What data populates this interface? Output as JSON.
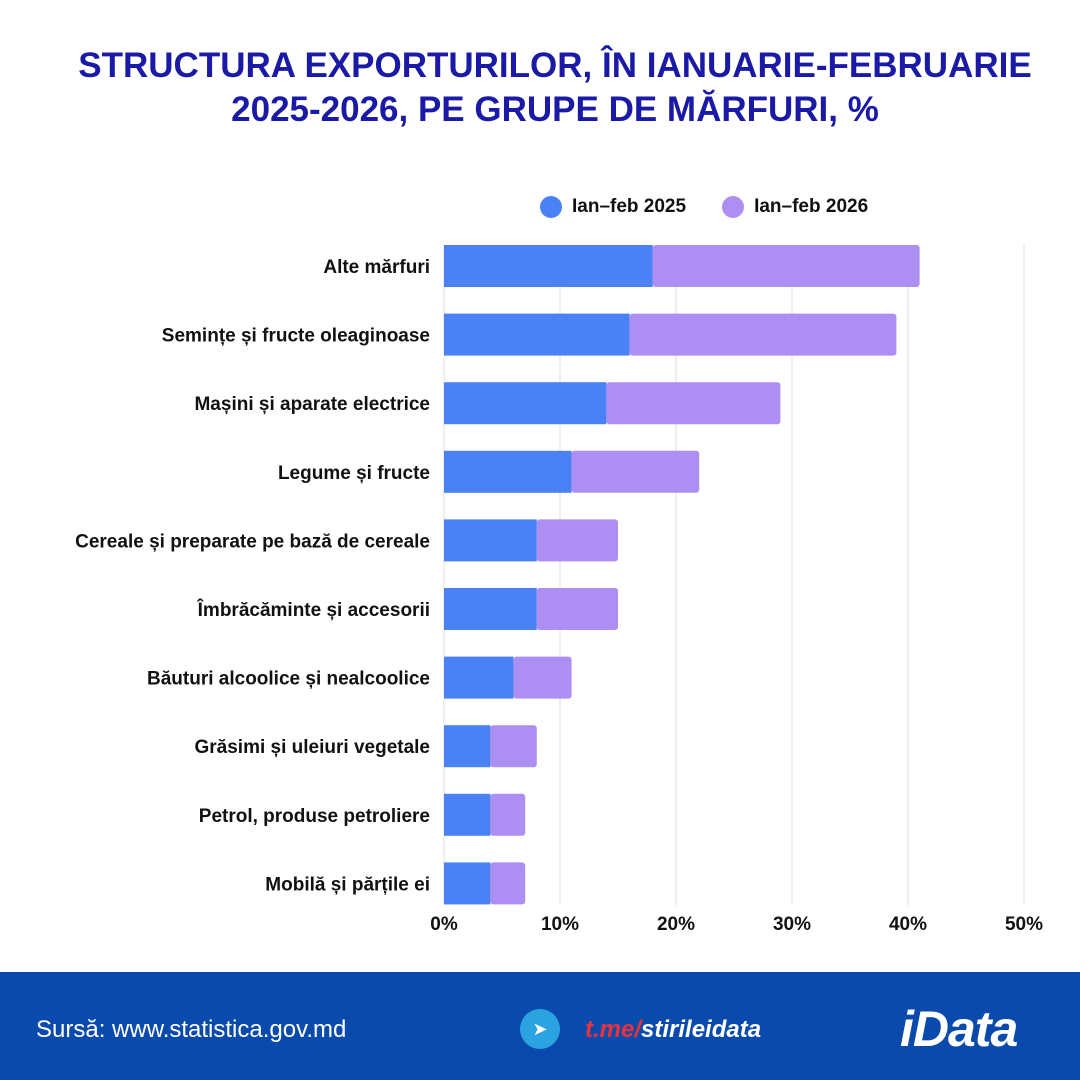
{
  "chart_data": {
    "type": "bar",
    "stacked": true,
    "orientation": "horizontal",
    "title": "STRUCTURA EXPORTURILOR, ÎN IANUARIE-FEBRUARIE 2025-2026, PE GRUPE DE MĂRFURI, %",
    "title_lines": [
      "STRUCTURA EXPORTURILOR, ÎN IANUARIE-FEBRUARIE",
      "2025-2026, PE GRUPE DE MĂRFURI, %"
    ],
    "categories": [
      "Alte mărfuri",
      "Semințe și fructe oleaginoase",
      "Mașini și aparate electrice",
      "Legume și fructe",
      "Cereale și preparate pe bază de cereale",
      "Îmbrăcăminte și accesorii",
      "Băuturi alcoolice și nealcoolice",
      "Grăsimi și uleiuri vegetale",
      "Petrol, produse petroliere",
      "Mobilă și părțile ei"
    ],
    "series": [
      {
        "name": "Ian–feb 2025",
        "color": "#4a82f5",
        "values": [
          18,
          16,
          14,
          11,
          8,
          8,
          6,
          4,
          4,
          4
        ]
      },
      {
        "name": "Ian–feb 2026",
        "color": "#ad8ff3",
        "values": [
          23,
          23,
          15,
          11,
          7,
          7,
          5,
          4,
          3,
          3
        ]
      }
    ],
    "xlim": [
      0,
      50
    ],
    "xticks": [
      "0%",
      "10%",
      "20%",
      "30%",
      "40%",
      "50%"
    ],
    "grid": true,
    "legend_position": "top-right"
  },
  "footer": {
    "source": "Sursă: www.statistica.gov.md",
    "link_red": "t.me/",
    "link_white": "stirileidata",
    "logo": "iData"
  }
}
